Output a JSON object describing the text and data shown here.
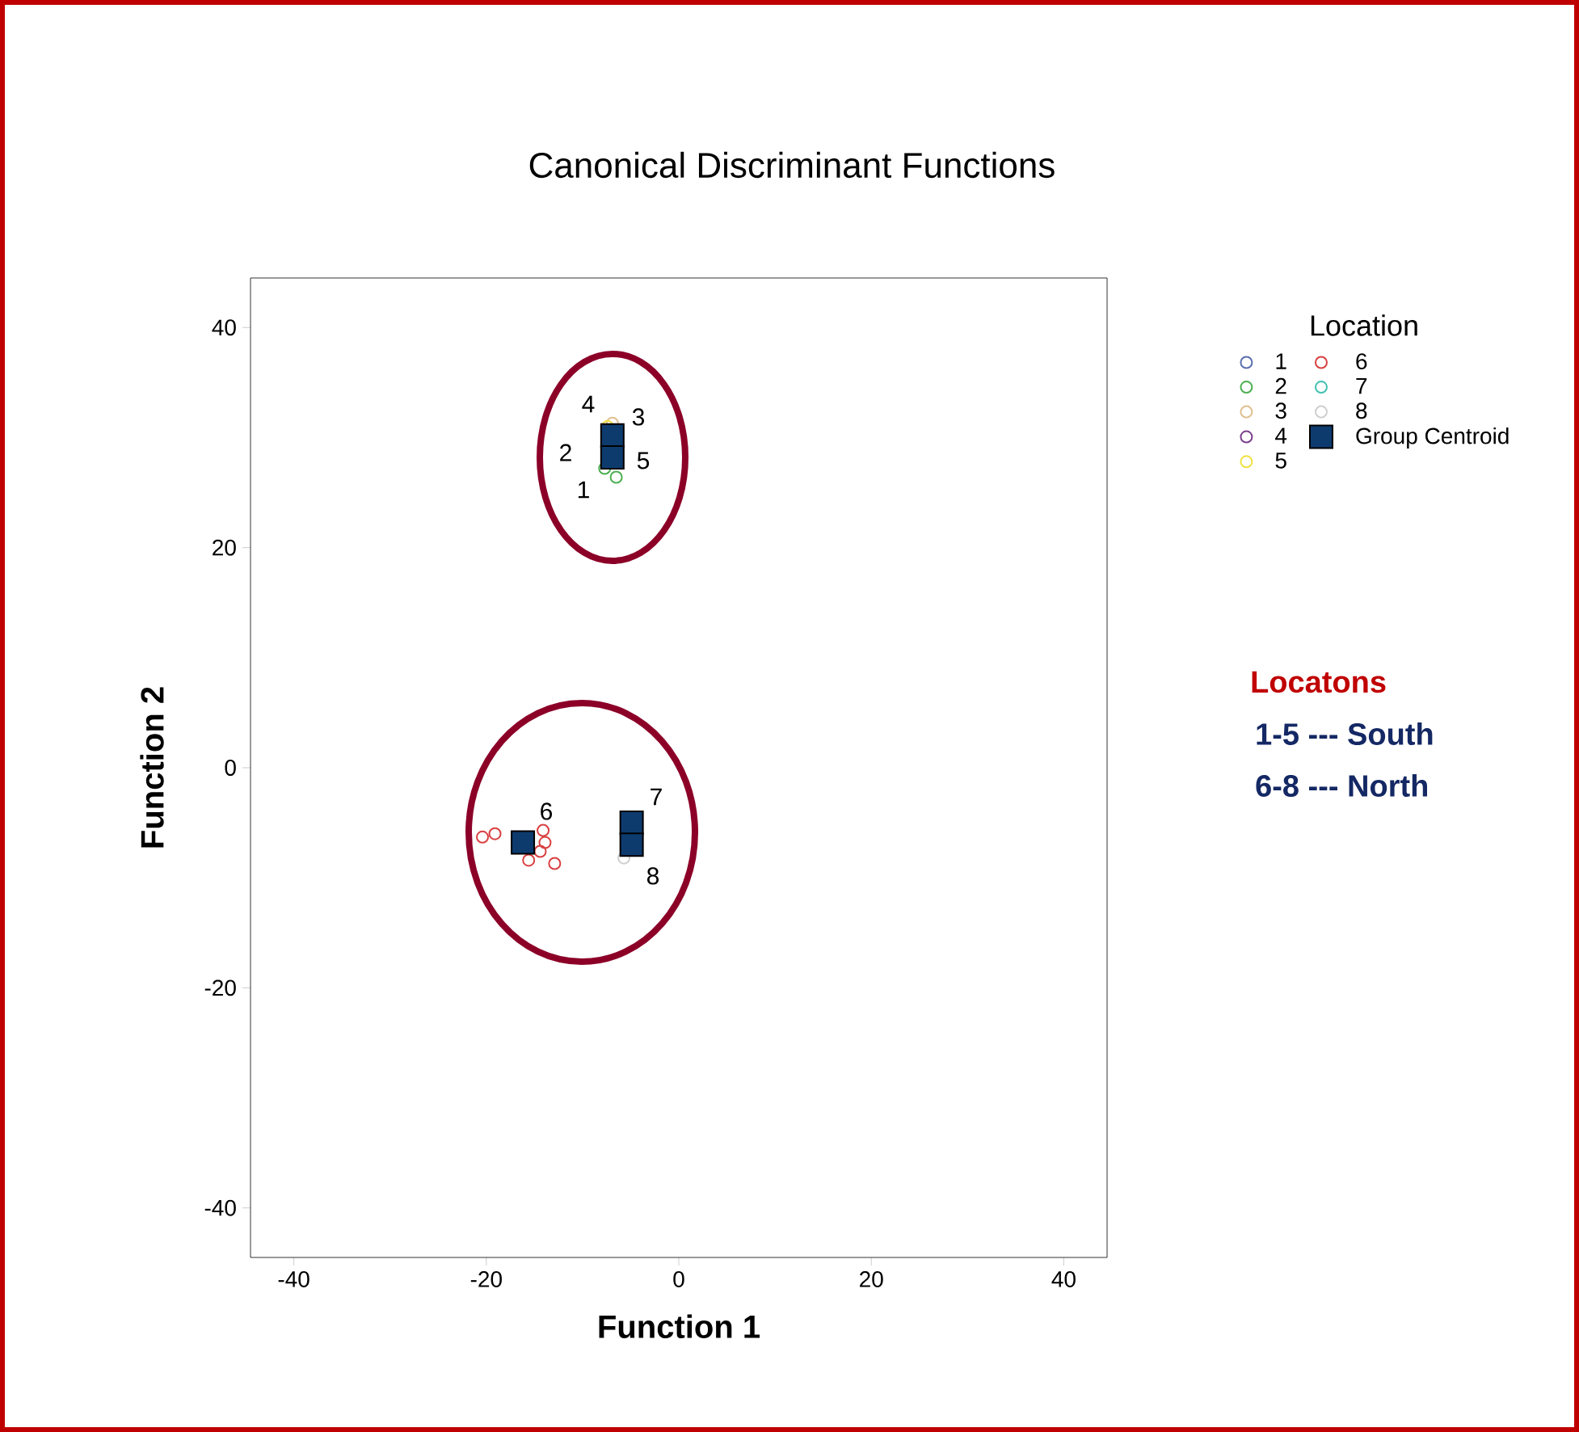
{
  "chart_data": {
    "type": "scatter",
    "title": "Canonical Discriminant Functions",
    "xlabel": "Function 1",
    "ylabel": "Function 2",
    "legend_title": "Location",
    "legend": "right",
    "xlim": [
      -44.5,
      44.5
    ],
    "ylim": [
      -44.5,
      44.5
    ],
    "xticks": [
      -40,
      -20,
      0,
      20,
      40
    ],
    "yticks": [
      -40,
      -20,
      0,
      20,
      40
    ],
    "series": [
      {
        "name": "1",
        "color": "#5a6fb0",
        "marker": "circle"
      },
      {
        "name": "2",
        "color": "#4caf50",
        "marker": "circle",
        "x": [
          -6.5,
          -7.7
        ],
        "values": [
          26.4,
          27.2
        ]
      },
      {
        "name": "3",
        "color": "#e0c090",
        "marker": "circle",
        "x": [
          -6.9
        ],
        "values": [
          31.3
        ]
      },
      {
        "name": "4",
        "color": "#7b3f8c",
        "marker": "circle"
      },
      {
        "name": "5",
        "color": "#f0e040",
        "marker": "circle",
        "x": [
          -7.4
        ],
        "values": [
          31.0
        ]
      },
      {
        "name": "6",
        "color": "#d94040",
        "marker": "circle",
        "x": [
          -20.4,
          -19.1,
          -14.1,
          -13.9,
          -14.4,
          -15.6,
          -12.9
        ],
        "values": [
          -6.3,
          -6.0,
          -5.7,
          -6.8,
          -7.6,
          -8.4,
          -8.7
        ]
      },
      {
        "name": "7",
        "color": "#40c0b0",
        "marker": "circle"
      },
      {
        "name": "8",
        "color": "#cfcfcf",
        "marker": "circle",
        "x": [
          -5.7
        ],
        "values": [
          -8.2
        ]
      },
      {
        "name": "Group Centroid",
        "color": "#0d3b6e",
        "marker": "square",
        "x": [
          -6.9,
          -6.9,
          -16.2,
          -4.9,
          -4.9
        ],
        "values": [
          30.2,
          28.2,
          -6.8,
          -5.0,
          -7.0
        ]
      }
    ],
    "annotations": [
      "4",
      "3",
      "2",
      "5",
      "1",
      "6",
      "7",
      "8",
      "Locatons",
      "1-5 --- South",
      "6-8 --- North"
    ]
  }
}
